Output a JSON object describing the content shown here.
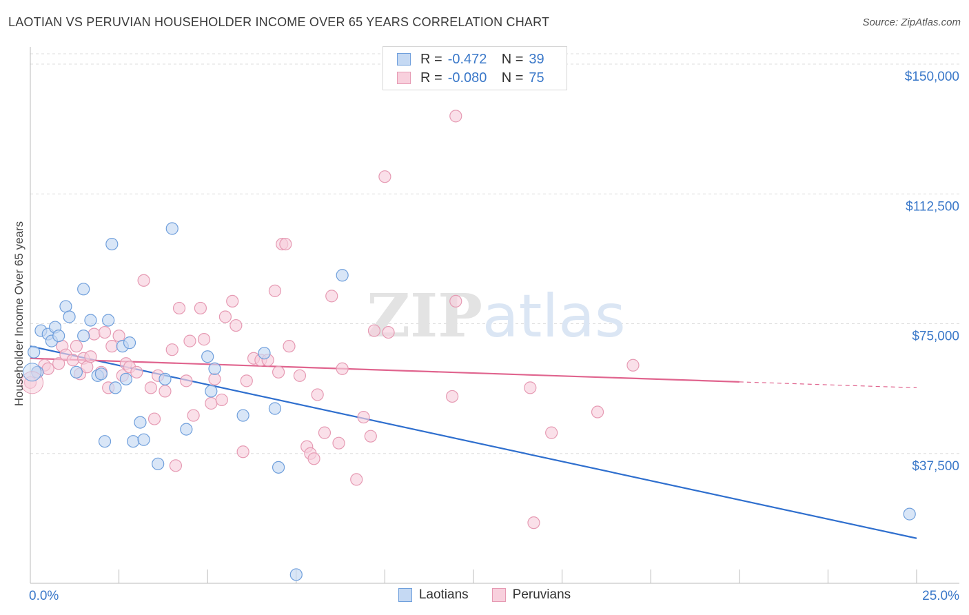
{
  "header": {
    "title": "LAOTIAN VS PERUVIAN HOUSEHOLDER INCOME OVER 65 YEARS CORRELATION CHART",
    "source": "Source: ZipAtlas.com"
  },
  "legend": {
    "rows": [
      {
        "r_label": "R =",
        "r_value": "-0.472",
        "n_label": "N =",
        "n_value": "39"
      },
      {
        "r_label": "R =",
        "r_value": "-0.080",
        "n_label": "N =",
        "n_value": "75"
      }
    ]
  },
  "bottom_legend": {
    "laotians": "Laotians",
    "peruvians": "Peruvians"
  },
  "colors": {
    "blue_fill": "#c5d9f3",
    "blue_stroke": "#6f9fdc",
    "blue_line": "#2f6fce",
    "pink_fill": "#f8d0dd",
    "pink_stroke": "#e69ab3",
    "pink_line": "#e0648e",
    "tick_text": "#3a78c9",
    "grid": "#dddddd"
  },
  "chart_data": {
    "type": "scatter",
    "title": "LAOTIAN VS PERUVIAN HOUSEHOLDER INCOME OVER 65 YEARS CORRELATION CHART",
    "xlabel": "",
    "ylabel": "Householder Income Over 65 years",
    "xlim": [
      0,
      25
    ],
    "ylim": [
      0,
      153000
    ],
    "x_tick_labels": [
      "0.0%",
      "25.0%"
    ],
    "y_ticks": [
      37500,
      75000,
      112500,
      150000
    ],
    "y_tick_labels": [
      "$37,500",
      "$75,000",
      "$112,500",
      "$150,000"
    ],
    "grid": true,
    "watermark": "ZIPatlas",
    "series": [
      {
        "name": "Laotians",
        "r": -0.472,
        "n": 39,
        "trend": {
          "x0": 0,
          "y0": 68500,
          "x1": 25,
          "y1": 13000,
          "solid_until": 25
        },
        "points": [
          [
            0.1,
            66800
          ],
          [
            0.3,
            73000
          ],
          [
            0.5,
            72000
          ],
          [
            0.6,
            70000
          ],
          [
            0.7,
            74000
          ],
          [
            0.8,
            71500
          ],
          [
            1.0,
            80000
          ],
          [
            1.1,
            77000
          ],
          [
            1.3,
            61000
          ],
          [
            1.5,
            71500
          ],
          [
            1.5,
            85000
          ],
          [
            1.7,
            76000
          ],
          [
            1.9,
            60000
          ],
          [
            2.0,
            60500
          ],
          [
            2.1,
            41000
          ],
          [
            2.2,
            76000
          ],
          [
            2.3,
            98000
          ],
          [
            2.4,
            56500
          ],
          [
            2.6,
            68500
          ],
          [
            2.7,
            59000
          ],
          [
            2.8,
            69500
          ],
          [
            2.9,
            41000
          ],
          [
            3.1,
            46500
          ],
          [
            3.2,
            41500
          ],
          [
            3.6,
            34500
          ],
          [
            3.8,
            59000
          ],
          [
            4.0,
            102500
          ],
          [
            4.4,
            44500
          ],
          [
            5.0,
            65500
          ],
          [
            5.1,
            55500
          ],
          [
            5.2,
            62000
          ],
          [
            6.0,
            48500
          ],
          [
            6.6,
            66500
          ],
          [
            6.9,
            50500
          ],
          [
            7.0,
            33500
          ],
          [
            7.5,
            2500
          ],
          [
            8.8,
            89000
          ],
          [
            24.8,
            20000
          ],
          [
            0.2,
            61000
          ]
        ]
      },
      {
        "name": "Peruvians",
        "r": -0.08,
        "n": 75,
        "trend": {
          "x0": 0,
          "y0": 65000,
          "x1": 25,
          "y1": 56500,
          "solid_until": 20
        },
        "points": [
          [
            0.0,
            58000
          ],
          [
            0.2,
            61000
          ],
          [
            0.4,
            63000
          ],
          [
            0.5,
            62000
          ],
          [
            0.8,
            63500
          ],
          [
            0.9,
            68500
          ],
          [
            1.0,
            66000
          ],
          [
            1.2,
            64500
          ],
          [
            1.3,
            68500
          ],
          [
            1.4,
            60500
          ],
          [
            1.5,
            65000
          ],
          [
            1.6,
            62500
          ],
          [
            1.7,
            65500
          ],
          [
            1.8,
            72000
          ],
          [
            2.0,
            61000
          ],
          [
            2.1,
            72500
          ],
          [
            2.2,
            56500
          ],
          [
            2.3,
            68500
          ],
          [
            2.5,
            71500
          ],
          [
            2.6,
            60000
          ],
          [
            2.7,
            63500
          ],
          [
            2.8,
            62500
          ],
          [
            3.0,
            61000
          ],
          [
            3.2,
            87500
          ],
          [
            3.4,
            56500
          ],
          [
            3.5,
            47500
          ],
          [
            3.6,
            60000
          ],
          [
            3.8,
            55500
          ],
          [
            4.0,
            67500
          ],
          [
            4.1,
            34000
          ],
          [
            4.2,
            79500
          ],
          [
            4.4,
            58500
          ],
          [
            4.5,
            70000
          ],
          [
            4.6,
            48500
          ],
          [
            4.8,
            79500
          ],
          [
            4.9,
            70500
          ],
          [
            5.1,
            52000
          ],
          [
            5.2,
            59000
          ],
          [
            5.4,
            53000
          ],
          [
            5.5,
            77000
          ],
          [
            5.7,
            81500
          ],
          [
            5.8,
            74500
          ],
          [
            6.0,
            38000
          ],
          [
            6.1,
            58500
          ],
          [
            6.3,
            65000
          ],
          [
            6.5,
            64500
          ],
          [
            6.7,
            64500
          ],
          [
            6.9,
            84500
          ],
          [
            7.0,
            61000
          ],
          [
            7.1,
            98000
          ],
          [
            7.2,
            98000
          ],
          [
            7.3,
            68500
          ],
          [
            7.6,
            60000
          ],
          [
            7.8,
            39500
          ],
          [
            7.9,
            37500
          ],
          [
            8.0,
            36000
          ],
          [
            8.1,
            54500
          ],
          [
            8.3,
            43500
          ],
          [
            8.5,
            83000
          ],
          [
            8.7,
            40500
          ],
          [
            8.8,
            62000
          ],
          [
            9.2,
            30000
          ],
          [
            9.4,
            48000
          ],
          [
            9.6,
            42500
          ],
          [
            9.7,
            73000
          ],
          [
            10.1,
            72500
          ],
          [
            10.0,
            117500
          ],
          [
            11.9,
            54000
          ],
          [
            12.0,
            81500
          ],
          [
            12.0,
            135000
          ],
          [
            14.1,
            56500
          ],
          [
            14.2,
            17500
          ],
          [
            14.7,
            43500
          ],
          [
            16.0,
            49500
          ],
          [
            17.0,
            63000
          ]
        ]
      }
    ]
  }
}
